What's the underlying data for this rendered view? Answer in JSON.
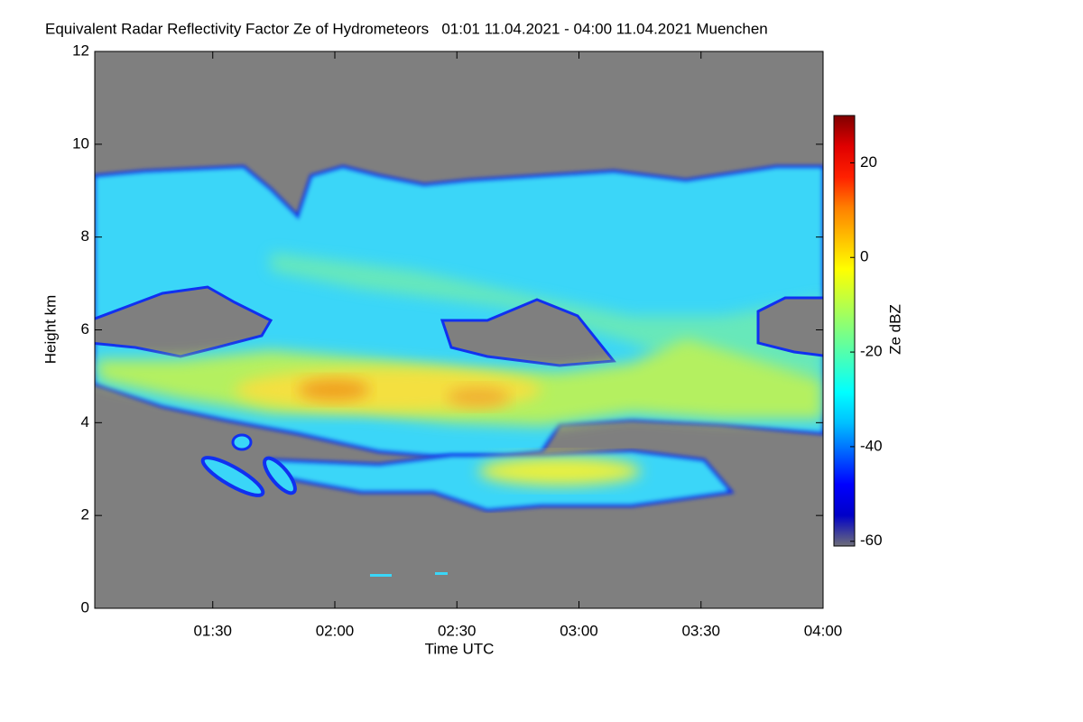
{
  "chart_data": {
    "type": "heatmap",
    "title": "Equivalent Radar Reflectivity Factor Ze of Hydrometeors   01:01 11.04.2021 - 04:00 11.04.2021 Muenchen",
    "xlabel": "Time UTC",
    "ylabel": "Height km",
    "xlim": [
      61,
      240
    ],
    "xticks": [
      {
        "value": 90,
        "label": "01:30"
      },
      {
        "value": 120,
        "label": "02:00"
      },
      {
        "value": 150,
        "label": "02:30"
      },
      {
        "value": 180,
        "label": "03:00"
      },
      {
        "value": 210,
        "label": "03:30"
      },
      {
        "value": 240,
        "label": "04:00"
      }
    ],
    "ylim": [
      0,
      12
    ],
    "yticks": [
      0,
      2,
      4,
      6,
      8,
      10,
      12
    ],
    "colorbar": {
      "label": "Ze dBZ",
      "lim": [
        -61,
        30
      ],
      "ticks": [
        -60,
        -40,
        -20,
        0,
        20
      ],
      "colormap": [
        "#6e6e78",
        "#0000c8",
        "#0000ff",
        "#0060ff",
        "#00c0ff",
        "#00ffff",
        "#40ffc0",
        "#80ff80",
        "#c0ff40",
        "#ffff00",
        "#ffc000",
        "#ff8000",
        "#ff2000",
        "#e00000",
        "#800000"
      ]
    }
  }
}
